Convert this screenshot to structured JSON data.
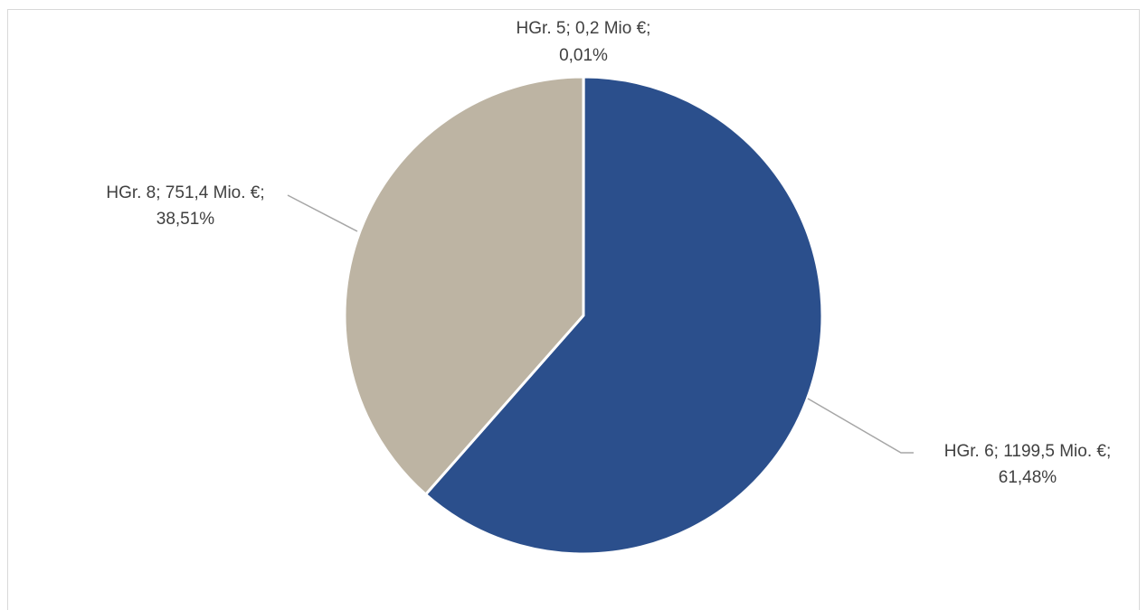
{
  "chart_data": {
    "type": "pie",
    "slices": [
      {
        "name": "HGr. 5",
        "value": 0.2,
        "label_line1": "HGr. 5; 0,2 Mio €;",
        "label_line2": "0,01%",
        "percent": 0.01,
        "color": "#2b4f8c"
      },
      {
        "name": "HGr. 6",
        "value": 1199.5,
        "label_line1": "HGr. 6; 1199,5 Mio. €;",
        "label_line2": "61,48%",
        "percent": 61.48,
        "color": "#2b4f8c"
      },
      {
        "name": "HGr. 8",
        "value": 751.4,
        "label_line1": "HGr. 8; 751,4 Mio. €;",
        "label_line2": "38,51%",
        "percent": 38.51,
        "color": "#bdb4a3"
      }
    ],
    "legend": "none"
  }
}
